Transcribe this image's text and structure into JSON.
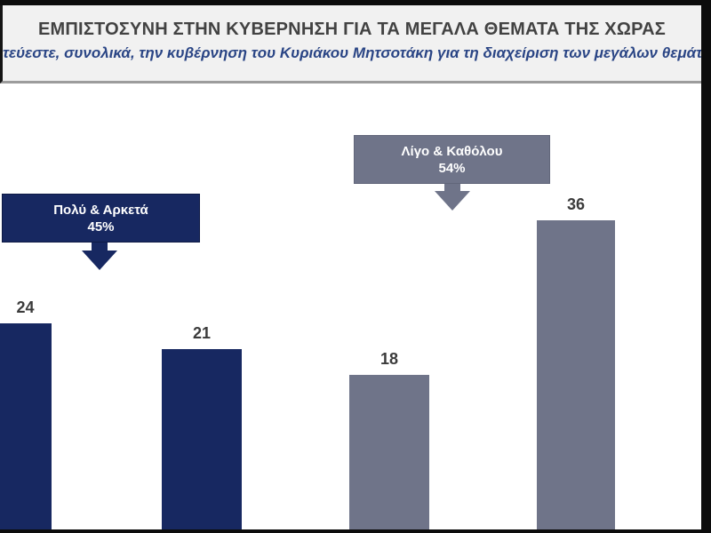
{
  "window": {
    "frame_color": "#0c0c0c",
    "body_bg": "#ffffff"
  },
  "header": {
    "title": "ΕΜΠΙΣΤΟΣΥΝΗ ΣΤΗΝ ΚΥΒΕΡΝΗΣΗ ΓΙΑ ΤΑ ΜΕΓΑΛΑ ΘΕΜΑΤΑ ΤΗΣ ΧΩΡΑΣ",
    "subtitle_visible": "τεύεστε, συνολικά, την κυβέρνηση του Κυριάκου Μητσοτάκη για τη διαχείριση των μεγάλων θεμάτ",
    "bg_color": "#f1f1f1",
    "title_color": "#424242",
    "subtitle_color": "#2a4585",
    "divider_color": "#9c9c9c"
  },
  "chart_data": {
    "type": "bar",
    "title": "ΕΜΠΙΣΤΟΣΥΝΗ ΣΤΗΝ ΚΥΒΕΡΝΗΣΗ ΓΙΑ ΤΑ ΜΕΓΑΛΑ ΘΕΜΑΤΑ ΤΗΣ ΧΩΡΑΣ",
    "values": [
      24,
      21,
      18,
      36
    ],
    "bars": [
      {
        "value": 24,
        "color_key": "navy"
      },
      {
        "value": 21,
        "color_key": "navy"
      },
      {
        "value": 18,
        "color_key": "gray"
      },
      {
        "value": 36,
        "color_key": "gray"
      }
    ],
    "groups": [
      {
        "label": "Πολύ & Αρκετά",
        "percent": "45%",
        "color": "#172861"
      },
      {
        "label": "Λίγο & Καθόλου",
        "percent": "54%",
        "color": "#6f7489"
      }
    ],
    "palette": {
      "navy": "#172861",
      "gray": "#6f7489"
    },
    "value_label_color": "#3b3b3b",
    "layout_hints": {
      "x_axis_labels_visible": false,
      "y_axis_visible": false,
      "gridlines": false,
      "first_bar_clipped_left": true,
      "baseline_color": "#0c0c0c"
    }
  }
}
